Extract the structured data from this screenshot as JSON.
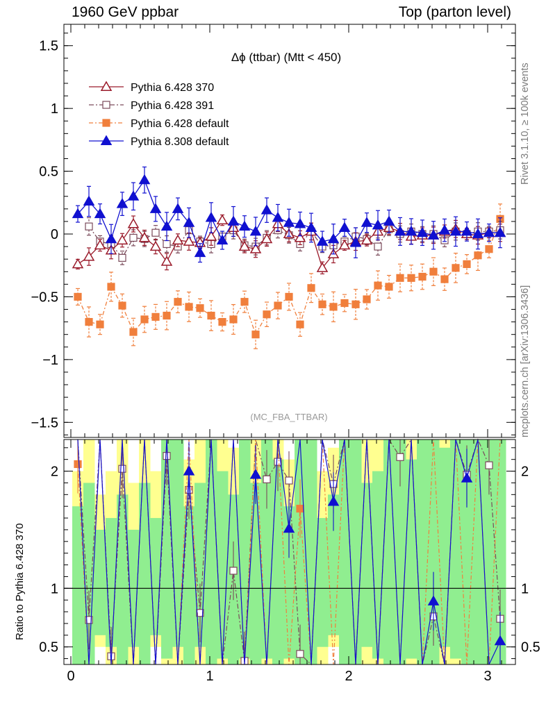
{
  "header": {
    "left": "1960 GeV ppbar",
    "right": "Top (parton level)"
  },
  "side_notes": {
    "rivet": "Rivet 3.1.10, ≥ 100k events",
    "mcplots": "mcplots.cern.ch [arXiv:1306.3436]"
  },
  "colors": {
    "p370": "#9a1a2a",
    "p391": "#7a4a5a",
    "pdef": "#f07f3c",
    "p8": "#1010d0",
    "band_inner": "#90ee90",
    "band_outer": "#ffff90"
  },
  "chart_data": [
    {
      "type": "line",
      "title": "Δϕ (ttbar) (Mtt < 450)",
      "watermark": "(MC_FBA_TTBAR)",
      "xlim": [
        -0.05,
        3.2
      ],
      "ylim": [
        -1.62,
        1.67
      ],
      "yticks": [
        -1.5,
        -1,
        -0.5,
        0,
        0.5,
        1,
        1.5
      ],
      "yticklabels": [
        "−1.5",
        "−1",
        "−0.5",
        "0",
        "0.5",
        "1",
        "1.5"
      ],
      "xticks": [
        0,
        1,
        2,
        3
      ],
      "legend_position": "top-left",
      "x": [
        0.05,
        0.13,
        0.21,
        0.29,
        0.37,
        0.45,
        0.53,
        0.61,
        0.69,
        0.77,
        0.85,
        0.93,
        1.01,
        1.09,
        1.17,
        1.25,
        1.33,
        1.41,
        1.49,
        1.57,
        1.65,
        1.73,
        1.81,
        1.89,
        1.97,
        2.05,
        2.13,
        2.21,
        2.29,
        2.37,
        2.45,
        2.53,
        2.61,
        2.69,
        2.77,
        2.85,
        2.93,
        3.01,
        3.09
      ],
      "series": [
        {
          "name": "Pythia 6.428 370",
          "values": [
            -0.24,
            -0.18,
            -0.09,
            -0.13,
            -0.05,
            0.08,
            -0.03,
            -0.1,
            -0.22,
            -0.05,
            -0.06,
            -0.07,
            -0.02,
            0.11,
            0.05,
            -0.1,
            -0.12,
            -0.04,
            0.08,
            0.0,
            -0.03,
            0.02,
            -0.27,
            -0.16,
            -0.09,
            -0.06,
            -0.05,
            0.02,
            0.05,
            0.02,
            -0.02,
            -0.01,
            -0.01,
            0.02,
            0.04,
            0.0,
            -0.01,
            0.01,
            0.01
          ]
        },
        {
          "name": "Pythia 6.428 391",
          "values": [
            null,
            0.06,
            -0.06,
            -0.08,
            -0.19,
            -0.03,
            -0.04,
            0.01,
            -0.08,
            -0.1,
            0.03,
            -0.06,
            -0.08,
            -0.02,
            0.03,
            -0.09,
            -0.1,
            -0.03,
            0.03,
            -0.01,
            -0.08,
            0.02,
            -0.1,
            -0.09,
            -0.06,
            -0.02,
            -0.04,
            -0.1,
            0.04,
            0.0,
            0.02,
            0.0,
            0.0,
            -0.05,
            0.02,
            0.0,
            0.02,
            0.02,
            0.03
          ]
        },
        {
          "name": "Pythia 6.428 default",
          "values": [
            -0.5,
            -0.7,
            -0.72,
            -0.42,
            -0.57,
            -0.78,
            -0.68,
            -0.66,
            -0.65,
            -0.54,
            -0.58,
            -0.59,
            -0.65,
            -0.7,
            -0.68,
            -0.54,
            -0.8,
            -0.64,
            -0.57,
            -0.5,
            -0.72,
            -0.43,
            -0.56,
            -0.58,
            -0.55,
            -0.56,
            -0.52,
            -0.41,
            -0.42,
            -0.35,
            -0.35,
            -0.34,
            -0.3,
            -0.36,
            -0.27,
            -0.24,
            -0.17,
            -0.12,
            0.12
          ]
        },
        {
          "name": "Pythia 8.308 default",
          "values": [
            0.16,
            0.26,
            0.16,
            -0.04,
            0.24,
            0.3,
            0.43,
            0.2,
            0.06,
            0.2,
            0.09,
            -0.15,
            0.13,
            -0.05,
            0.1,
            0.06,
            0.02,
            0.19,
            0.13,
            0.09,
            0.08,
            0.05,
            -0.06,
            -0.04,
            0.05,
            -0.07,
            0.09,
            0.07,
            0.1,
            0.02,
            0.02,
            0.01,
            -0.01,
            0.03,
            0.02,
            0.02,
            0.0,
            0.01,
            0.01
          ]
        }
      ],
      "errors": {
        "Pythia 6.428 370": 0.07,
        "Pythia 6.428 391": 0.07,
        "Pythia 6.428 default": 0.12,
        "Pythia 8.308 default": 0.12
      }
    },
    {
      "type": "line",
      "ylabel": "Ratio to Pythia 6.428 370",
      "xlim": [
        -0.05,
        3.2
      ],
      "ylim": [
        0.35,
        2.27
      ],
      "yticks": [
        0.5,
        1,
        2
      ],
      "yticklabels": [
        "0.5",
        "1",
        "2"
      ],
      "xticks": [
        0,
        1,
        2,
        3
      ],
      "xticklabels": [
        "0",
        "1",
        "2",
        "3"
      ],
      "reference_line": 1,
      "band_inner": [
        0.35,
        0.35,
        0.6,
        0.5,
        0.35,
        0.5,
        0.35,
        0.6,
        0.4,
        0.5,
        0.35,
        0.5,
        0.35,
        0.4,
        0.35,
        0.4,
        0.35,
        0.4,
        0.35,
        0.4,
        0.35,
        0.35,
        0.5,
        0.6,
        0.35,
        0.35,
        0.5,
        0.4,
        0.35,
        0.35,
        0.4,
        0.35,
        0.35,
        0.5,
        0.4,
        0.35,
        0.35,
        0.35,
        0.35
      ],
      "band_inner_hi": [
        1.7,
        1.9,
        1.5,
        1.6,
        1.8,
        1.5,
        1.9,
        1.6,
        2.27,
        2.27,
        1.7,
        1.9,
        2.27,
        2.0,
        1.8,
        2.27,
        1.9,
        2.27,
        2.1,
        1.7,
        2.27,
        2.27,
        1.6,
        1.8,
        2.27,
        2.27,
        1.9,
        2.0,
        2.27,
        2.27,
        2.1,
        2.27,
        2.27,
        2.2,
        2.27,
        2.27,
        2.27,
        2.27,
        2.27
      ],
      "band_outer_lo": [
        0.35,
        0.35,
        0.5,
        0.35,
        0.35,
        0.35,
        0.35,
        0.5,
        0.35,
        0.35,
        0.35,
        0.35,
        0.35,
        0.35,
        0.35,
        0.35,
        0.35,
        0.35,
        0.35,
        0.35,
        0.35,
        0.35,
        0.35,
        0.5,
        0.35,
        0.35,
        0.35,
        0.35,
        0.35,
        0.35,
        0.35,
        0.35,
        0.35,
        0.35,
        0.35,
        0.35,
        0.35,
        0.35,
        0.35
      ],
      "band_outer_hi": [
        2.0,
        2.27,
        1.8,
        2.0,
        2.27,
        1.9,
        2.27,
        2.0,
        2.27,
        2.27,
        2.1,
        2.27,
        2.27,
        2.27,
        2.2,
        2.27,
        2.27,
        2.27,
        2.27,
        2.1,
        2.27,
        2.27,
        2.0,
        2.2,
        2.27,
        2.27,
        2.27,
        2.27,
        2.27,
        2.27,
        2.27,
        2.27,
        2.27,
        2.27,
        2.27,
        2.27,
        2.27,
        2.27,
        2.27
      ],
      "series": [
        {
          "name": "Pythia 6.428 391",
          "values": [
            null,
            0.73,
            null,
            0.42,
            2.02,
            null,
            null,
            null,
            2.13,
            null,
            1.84,
            0.79,
            null,
            null,
            1.15,
            0.38,
            null,
            1.93,
            2.08,
            1.92,
            0.44,
            null,
            null,
            1.89,
            null,
            null,
            null,
            null,
            null,
            2.12,
            null,
            null,
            0.76,
            null,
            null,
            1.97,
            null,
            2.05,
            0.74
          ]
        },
        {
          "name": "Pythia 6.428 default",
          "values": [
            2.06,
            null,
            null,
            null,
            null,
            null,
            null,
            null,
            null,
            null,
            null,
            null,
            null,
            null,
            null,
            null,
            null,
            null,
            null,
            null,
            1.68,
            null,
            null,
            null,
            null,
            null,
            null,
            null,
            null,
            null,
            null,
            null,
            null,
            null,
            null,
            null,
            null,
            null,
            null
          ]
        },
        {
          "name": "Pythia 8.308 default",
          "values": [
            null,
            null,
            null,
            null,
            null,
            null,
            null,
            null,
            null,
            null,
            2.0,
            null,
            null,
            null,
            null,
            null,
            1.97,
            null,
            null,
            1.51,
            null,
            null,
            null,
            1.74,
            null,
            null,
            null,
            null,
            null,
            null,
            null,
            null,
            0.89,
            null,
            null,
            1.94,
            null,
            null,
            0.55
          ]
        }
      ]
    }
  ]
}
